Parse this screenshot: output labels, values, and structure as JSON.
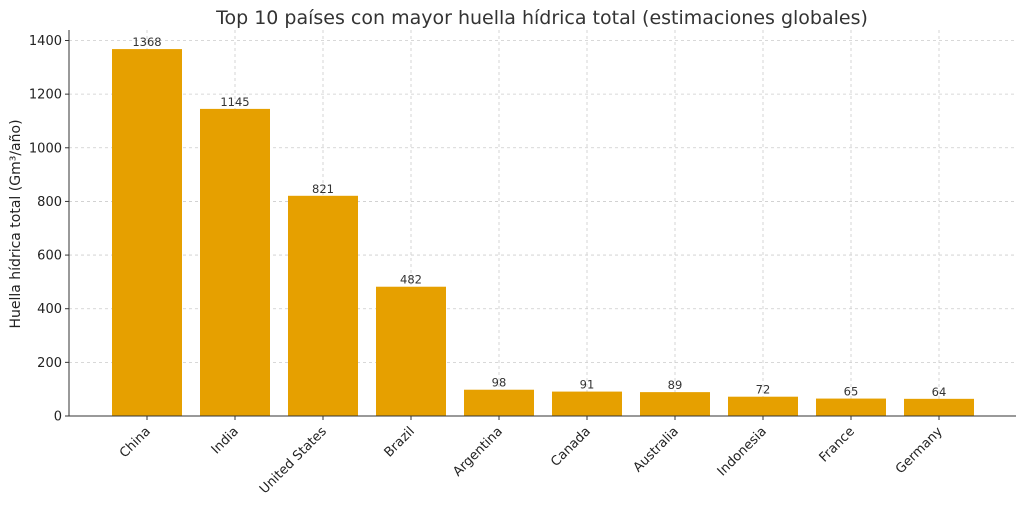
{
  "chart_data": {
    "type": "bar",
    "title": "Top 10 países con mayor huella hídrica total (estimaciones globales)",
    "xlabel": "",
    "ylabel": "Huella hídrica total (Gm³/año)",
    "categories": [
      "China",
      "India",
      "United States",
      "Brazil",
      "Argentina",
      "Canada",
      "Australia",
      "Indonesia",
      "France",
      "Germany"
    ],
    "values": [
      1368,
      1145,
      821,
      482,
      98,
      91,
      89,
      72,
      65,
      64
    ],
    "data_labels": [
      "1368",
      "1145",
      "821",
      "482",
      "98",
      "91",
      "89",
      "72",
      "65",
      "64"
    ],
    "ylim": [
      0,
      1450
    ],
    "yticks": [
      0,
      200,
      400,
      600,
      800,
      1000,
      1200,
      1400
    ],
    "ytick_labels": [
      "0",
      "200",
      "400",
      "600",
      "800",
      "1000",
      "1200",
      "1400"
    ],
    "grid": true,
    "bar_color": "#E6A000"
  }
}
